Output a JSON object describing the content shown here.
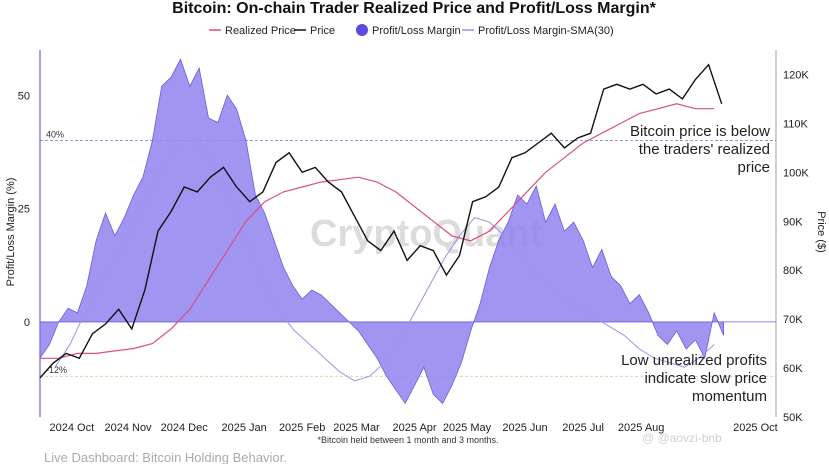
{
  "chart_data": {
    "type": "line",
    "title": "Bitcoin: On-chain Trader Realized Price and Profit/Loss Margin*",
    "subtitle_note": "*Bitcoin held between 1 month and 3 months.",
    "left_axis_label": "Profit/Loss Margin (%)",
    "right_axis_label": "Price ($)",
    "left_ticks": [
      "50",
      "25",
      "0"
    ],
    "right_ticks": [
      "120K",
      "110K",
      "100K",
      "90K",
      "80K",
      "70K",
      "60K",
      "50K"
    ],
    "left_range": [
      -21,
      60
    ],
    "right_range": [
      50000,
      125000
    ],
    "x_ticks": [
      "2024 Oct",
      "2024 Nov",
      "2024 Dec",
      "2025 Jan",
      "2025 Feb",
      "2025 Mar",
      "2025 Apr",
      "2025 May",
      "2025 Jun",
      "2025 Jul",
      "2025 Aug",
      "2025 Oct"
    ],
    "reference_lines": [
      {
        "label": "40%",
        "value": 40
      },
      {
        "label": "-12%",
        "value": -12
      }
    ],
    "legend": [
      {
        "name": "Realized Price",
        "color": "#d9507f"
      },
      {
        "name": "Price",
        "color": "#111111"
      },
      {
        "name": "Profit/Loss Margin",
        "color": "#5b4be0"
      },
      {
        "name": "Profit/Loss Margin-SMA(30)",
        "color": "#9b93ec"
      }
    ],
    "series": [
      {
        "name": "Profit/Loss Margin",
        "axis": "left",
        "values": [
          -8,
          -5,
          0,
          3,
          2,
          8,
          18,
          24,
          19,
          23,
          28,
          32,
          40,
          52,
          54,
          58,
          52,
          56,
          45,
          44,
          50,
          47,
          40,
          28,
          24,
          18,
          12,
          8,
          5,
          7,
          6,
          4,
          2,
          0,
          -2,
          -5,
          -8,
          -12,
          -15,
          -18,
          -14,
          -10,
          -16,
          -18,
          -14,
          -9,
          -2,
          4,
          12,
          18,
          22,
          28,
          26,
          30,
          22,
          26,
          20,
          22,
          18,
          12,
          16,
          10,
          8,
          4,
          6,
          2,
          -3,
          -5,
          -2,
          -6,
          -4,
          -8,
          2,
          -3
        ],
        "x_start": "2024-09-20",
        "step_days": 5
      },
      {
        "name": "Profit/Loss Margin-SMA(30)",
        "axis": "left",
        "values": [
          -10,
          -5,
          2,
          8,
          14,
          20,
          26,
          33,
          38,
          41,
          38,
          32,
          24,
          16,
          8,
          2,
          -2,
          -5,
          -8,
          -11,
          -13,
          -12,
          -9,
          -4,
          2,
          8,
          14,
          19,
          23,
          22,
          19,
          15,
          11,
          8,
          5,
          3,
          1,
          -1,
          -3,
          -6,
          -8,
          -9,
          -10,
          -8,
          -5
        ],
        "x_start": "2024-09-28",
        "step_days": 8
      },
      {
        "name": "Price",
        "axis": "right",
        "values": [
          58000,
          61000,
          63000,
          62000,
          67000,
          69000,
          72000,
          68000,
          76000,
          88000,
          92000,
          97000,
          96000,
          99000,
          101000,
          97000,
          94000,
          96000,
          102000,
          104000,
          100000,
          101000,
          98000,
          96000,
          91000,
          86000,
          84000,
          88000,
          82000,
          85000,
          84000,
          79000,
          83000,
          94000,
          95000,
          97000,
          103000,
          104000,
          106000,
          108000,
          105000,
          107000,
          108000,
          117000,
          118000,
          117000,
          118000,
          116000,
          117000,
          115000,
          119000,
          122000,
          114000
        ],
        "x_start": "2024-09-20",
        "step_days": 7
      },
      {
        "name": "Realized Price",
        "axis": "right",
        "values": [
          62000,
          62000,
          63000,
          63000,
          63500,
          64000,
          65000,
          68000,
          72000,
          78000,
          84000,
          90000,
          94000,
          96000,
          97000,
          98000,
          98500,
          99000,
          98000,
          96000,
          93000,
          90000,
          87000,
          86000,
          88000,
          92000,
          96000,
          100000,
          103000,
          106000,
          108000,
          110000,
          112000,
          113000,
          114000,
          113000,
          113000
        ],
        "x_start": "2024-09-20",
        "step_days": 10
      }
    ],
    "annotations": [
      "Bitcoin price is below",
      "the traders' realized",
      "price",
      "Low unrealized profits",
      "indicate slow price",
      "momentum"
    ]
  },
  "watermark": "CryptoQuant",
  "footer": "Live Dashboard: Bitcoin Holding Behavior.",
  "handle": "@ @aovzi-bnb"
}
